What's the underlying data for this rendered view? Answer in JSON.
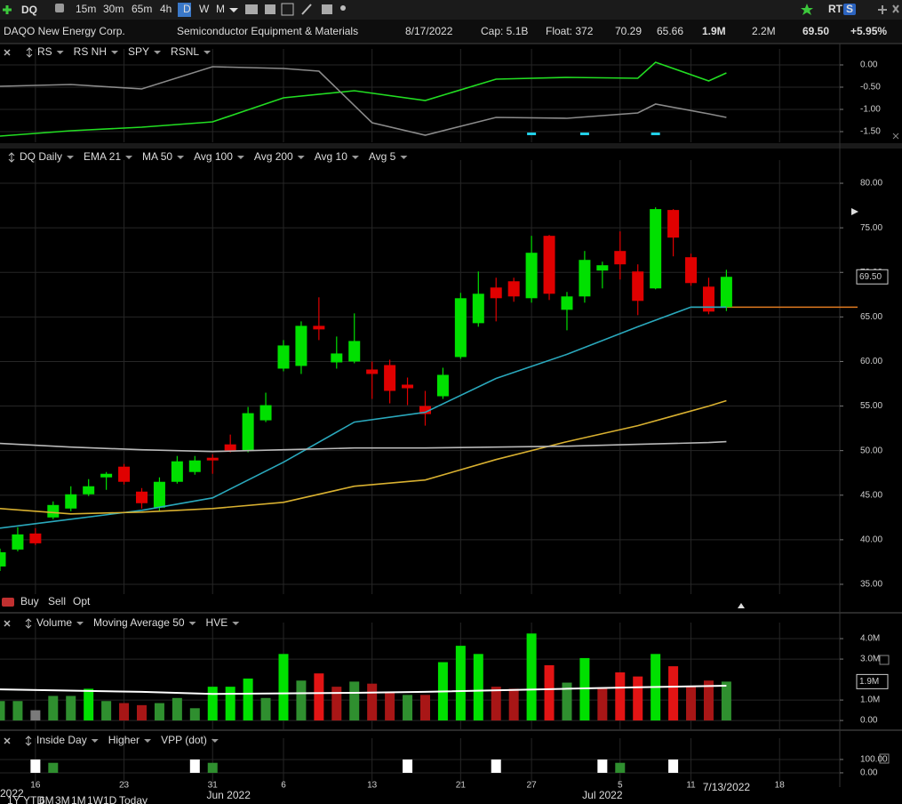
{
  "toolbar": {
    "symbol": "DQ",
    "intervals": [
      "15m",
      "30m",
      "65m",
      "4h",
      "D",
      "W",
      "M"
    ],
    "active_interval": 4,
    "right_labels": [
      "RT",
      "S"
    ]
  },
  "quote": {
    "name": "DAQO New Energy Corp.",
    "industry": "Semiconductor Equipment & Materials",
    "date": "8/17/2022",
    "cap": "Cap: 5.1B",
    "float": "Float: 372",
    "high": "70.29",
    "low": "65.66",
    "volume": "1.9M",
    "avg_volume": "2.2M",
    "last": "69.50",
    "change": "+5.95%"
  },
  "order_bar": [
    "Buy",
    "Sell",
    "Opt"
  ],
  "x_axis": {
    "xlim": [
      0,
      47.4
    ],
    "xticks": [
      {
        "value": 2,
        "label": "16"
      },
      {
        "value": 7,
        "label": "23"
      },
      {
        "value": 12,
        "label": "31"
      },
      {
        "value": 16,
        "label": "6"
      },
      {
        "value": 21,
        "label": "13"
      },
      {
        "value": 26,
        "label": "21"
      },
      {
        "value": 30,
        "label": "27"
      },
      {
        "value": 35,
        "label": "5"
      },
      {
        "value": 39,
        "label": "11"
      },
      {
        "value": 44,
        "label": "18"
      }
    ],
    "months": [
      {
        "value": 12.9,
        "label": "Jun 2022"
      },
      {
        "value": 34,
        "label": "Jul 2022"
      }
    ],
    "cursor_date": {
      "value": 41,
      "label": "7/13/2022"
    },
    "year": "2022",
    "periods": [
      "1Y",
      "YTD",
      "6M",
      "3M",
      "1M",
      "1W",
      "1D",
      "Today"
    ]
  },
  "chart_data": [
    {
      "type": "line",
      "ylim": [
        -1.74,
        0.16
      ],
      "yticks": [
        {
          "value": 0,
          "label": "0.00"
        },
        {
          "value": -0.5,
          "label": "-0.50"
        },
        {
          "value": -1,
          "label": "-1.00"
        },
        {
          "value": -1.5,
          "label": "-1.50"
        }
      ],
      "series": [
        {
          "name": "RS",
          "mark": "line",
          "color": "#22dd22",
          "label_color": "#3cc8e8",
          "x": [
            0,
            4,
            8,
            12,
            16,
            20,
            24,
            28,
            32,
            36,
            37,
            40,
            41
          ],
          "values": [
            -1.6,
            -1.48,
            -1.4,
            -1.28,
            -0.74,
            -0.58,
            -0.8,
            -0.32,
            -0.28,
            -0.3,
            0.06,
            -0.36,
            -0.18
          ]
        },
        {
          "name": "RS NH",
          "mark": "tick",
          "color": "#22d0e8",
          "label_color": "#3cc8e8",
          "x": [
            30,
            33,
            37
          ]
        },
        {
          "name": "SPY",
          "mark": "line",
          "color": "#8a8a8a",
          "label_color": "#9a9a9a",
          "x": [
            0,
            4,
            8,
            12,
            16,
            18,
            21,
            24,
            28,
            32,
            36,
            37,
            40,
            41
          ],
          "values": [
            -0.48,
            -0.44,
            -0.54,
            -0.04,
            -0.08,
            -0.14,
            -1.3,
            -1.58,
            -1.18,
            -1.2,
            -1.08,
            -0.88,
            -1.1,
            -1.18
          ]
        },
        {
          "name": "RSNL",
          "color": "#e03030",
          "label_color": "#e03030"
        }
      ]
    },
    {
      "type": "candlestick",
      "ylim": [
        33.9,
        81.6
      ],
      "yticks": [
        {
          "value": 80,
          "label": "80.00"
        },
        {
          "value": 75,
          "label": "75.00"
        },
        {
          "value": 70,
          "label": "70.00"
        },
        {
          "value": 65,
          "label": "65.00"
        },
        {
          "value": 60,
          "label": "60.00"
        },
        {
          "value": 55,
          "label": "55.00"
        },
        {
          "value": 50,
          "label": "50.00"
        },
        {
          "value": 45,
          "label": "45.00"
        },
        {
          "value": 40,
          "label": "40.00"
        },
        {
          "value": 35,
          "label": "35.00"
        }
      ],
      "last_value": {
        "value": 69.5,
        "label": "69.50"
      },
      "hline": {
        "value": 66.1,
        "color": "#e07a20"
      },
      "series": [
        {
          "name": "DQ Daily",
          "mark": "candle",
          "color": "#4cd44c",
          "up_color": "#00e000",
          "down_color": "#e00000",
          "open": [
            37,
            38.9,
            40.7,
            42.5,
            43.5,
            45.1,
            47,
            48.2,
            45.4,
            43.6,
            46.5,
            47.6,
            49.2,
            50.7,
            50,
            53.4,
            59.2,
            59.5,
            64,
            59.9,
            60,
            59.1,
            59.6,
            57.4,
            55,
            56.1,
            60.5,
            64.3,
            68.3,
            69,
            67.1,
            74.1,
            65.8,
            67.3,
            70.2,
            72.4,
            70.1,
            68.2,
            77,
            71.7,
            68.4,
            66.1
          ],
          "high": [
            39,
            41.4,
            41.3,
            44.3,
            46,
            46.8,
            47.6,
            48.5,
            45.8,
            47,
            49.4,
            49.4,
            49.6,
            51.8,
            54.9,
            56.5,
            62.4,
            64.5,
            67.2,
            62.8,
            65.4,
            60,
            60.2,
            58.2,
            56.7,
            59.3,
            67.7,
            70.1,
            69.4,
            69.4,
            74.1,
            74.2,
            67.8,
            72.4,
            71.2,
            74.6,
            70.9,
            77.3,
            77.1,
            72.1,
            69.4,
            70.29
          ],
          "low": [
            36.5,
            38.7,
            39.4,
            42.3,
            43.2,
            44.9,
            45.6,
            46.2,
            43.5,
            43.2,
            46.3,
            47.3,
            47.4,
            49.8,
            49.8,
            53.2,
            58.9,
            58.6,
            62.4,
            59.2,
            59.8,
            55.8,
            55.3,
            55.1,
            52.8,
            55.8,
            60.3,
            63.9,
            64.5,
            66.7,
            66.6,
            66.9,
            63.5,
            66.6,
            68.2,
            69.2,
            65.2,
            68.1,
            71.8,
            68.5,
            65.3,
            65.66
          ],
          "close": [
            38.6,
            40.6,
            39.6,
            43.9,
            45.1,
            46,
            47.4,
            46.5,
            44.1,
            46.5,
            48.8,
            48.9,
            48.9,
            50,
            54.2,
            55.1,
            61.8,
            64,
            63.6,
            60.9,
            62.3,
            58.6,
            56.7,
            57,
            54.1,
            58.5,
            67.1,
            67.6,
            67.1,
            67.3,
            72.2,
            67.6,
            67.3,
            71.4,
            70.8,
            70.9,
            66.8,
            77.1,
            73.9,
            68.8,
            65.6,
            69.5
          ]
        },
        {
          "name": "EMA 21",
          "mark": "line",
          "color": "#2aa8bc",
          "x": [
            0,
            4,
            8,
            12,
            16,
            20,
            24,
            28,
            32,
            36,
            39,
            41
          ],
          "values": [
            41.3,
            42.3,
            43.3,
            44.7,
            48.7,
            53.2,
            54.3,
            58.1,
            60.8,
            63.9,
            66.1,
            66.1
          ]
        },
        {
          "name": "MA 50",
          "mark": "line",
          "color": "#d8b030",
          "x": [
            0,
            4,
            8,
            12,
            16,
            20,
            24,
            28,
            32,
            36,
            40,
            41
          ],
          "values": [
            43.5,
            42.9,
            43.1,
            43.5,
            44.2,
            46,
            46.7,
            49,
            51,
            52.8,
            55,
            55.6
          ]
        },
        {
          "name": "Avg 100",
          "color": "#e08a2a"
        },
        {
          "name": "Avg 200",
          "mark": "line",
          "color": "#b8b8b8",
          "x": [
            0,
            4,
            8,
            12,
            16,
            20,
            24,
            28,
            32,
            36,
            40,
            41
          ],
          "values": [
            50.8,
            50.4,
            50.1,
            49.9,
            50.1,
            50.3,
            50.3,
            50.4,
            50.5,
            50.7,
            50.9,
            51
          ]
        },
        {
          "name": "Avg 10",
          "color": "#e6b8e6"
        },
        {
          "name": "Avg 5",
          "color": "#4aa0a0"
        }
      ]
    },
    {
      "type": "bar",
      "ylim": [
        -0.43,
        4.35
      ],
      "yticks": [
        {
          "value": 4,
          "label": "4.0M"
        },
        {
          "value": 3,
          "label": "3.0M"
        },
        {
          "value": 1,
          "label": "1.0M"
        },
        {
          "value": 0,
          "label": "0.00"
        }
      ],
      "last_value": {
        "value": 1.9,
        "label": "1.9M"
      },
      "series": [
        {
          "name": "Volume",
          "mark": "bar",
          "color": "#3cc83c",
          "values": [
            0.95,
            0.95,
            0.5,
            1.2,
            1.2,
            1.55,
            0.95,
            0.85,
            0.75,
            0.85,
            1.1,
            0.6,
            1.65,
            1.65,
            2.05,
            1.1,
            3.25,
            1.95,
            2.3,
            1.65,
            1.9,
            1.8,
            1.4,
            1.25,
            1.25,
            2.85,
            3.65,
            3.25,
            1.65,
            1.55,
            4.25,
            2.7,
            1.85,
            3.05,
            1.55,
            2.35,
            2.15,
            3.25,
            2.65,
            1.7,
            1.95,
            1.9
          ],
          "colors": [
            "#2f8f2f",
            "#2f8f2f",
            "#7a7a7a",
            "#2f8f2f",
            "#2f8f2f",
            "#00e000",
            "#2f8f2f",
            "#a81616",
            "#a81616",
            "#2f8f2f",
            "#2f8f2f",
            "#2f8f2f",
            "#00e000",
            "#00e000",
            "#00e000",
            "#2f8f2f",
            "#00e000",
            "#2f8f2f",
            "#e21414",
            "#a81616",
            "#2f8f2f",
            "#a81616",
            "#a81616",
            "#2f8f2f",
            "#a81616",
            "#00e000",
            "#00e000",
            "#00e000",
            "#a81616",
            "#a81616",
            "#00e000",
            "#e21414",
            "#2f8f2f",
            "#00e000",
            "#a81616",
            "#e21414",
            "#e21414",
            "#00e000",
            "#e21414",
            "#a81616",
            "#a81616",
            "#2f8f2f"
          ]
        },
        {
          "name": "Moving Average 50",
          "mark": "line",
          "color": "#ffffff",
          "x": [
            0,
            8,
            12,
            20,
            24,
            32,
            36,
            41
          ],
          "values": [
            1.52,
            1.4,
            1.3,
            1.35,
            1.4,
            1.55,
            1.62,
            1.7
          ]
        },
        {
          "name": "HVE",
          "color": "#dddddd"
        }
      ]
    },
    {
      "type": "bar",
      "ylim": [
        -107,
        193
      ],
      "yticks": [
        {
          "value": 100,
          "label": "100.00"
        },
        {
          "value": 0,
          "label": "0.00"
        }
      ],
      "series": [
        {
          "name": "Inside Day",
          "mark": "bar",
          "color": "#ffffff",
          "label_color": "#dddddd",
          "x": [
            2,
            11,
            23,
            28,
            34,
            38
          ],
          "values": [
            100,
            100,
            100,
            100,
            100,
            100
          ]
        },
        {
          "name": "Higher",
          "mark": "bar",
          "color": "#2f8f2f",
          "label_color": "#3cc83c",
          "x": [
            3,
            12,
            35
          ],
          "values": [
            75,
            75,
            75
          ]
        },
        {
          "name": "VPP (dot)",
          "color": "#dddddd"
        }
      ]
    }
  ]
}
